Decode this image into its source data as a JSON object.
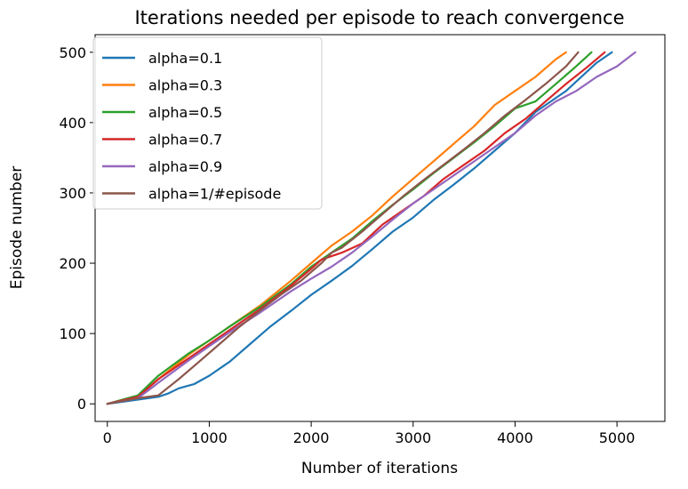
{
  "chart_data": {
    "type": "line",
    "title": "Iterations needed per episode to reach convergence",
    "xlabel": "Number of iterations",
    "ylabel": "Episode number",
    "xlim": [
      -120,
      5470
    ],
    "ylim": [
      -25,
      525
    ],
    "xticks": [
      0,
      1000,
      2000,
      3000,
      4000,
      5000
    ],
    "yticks": [
      0,
      100,
      200,
      300,
      400,
      500
    ],
    "grid": false,
    "legend": {
      "placement": "upper-left"
    },
    "series": [
      {
        "name": "alpha=0.1",
        "color": "#1f77b4",
        "points": [
          [
            0,
            0
          ],
          [
            250,
            5
          ],
          [
            500,
            10
          ],
          [
            600,
            15
          ],
          [
            700,
            22
          ],
          [
            850,
            28
          ],
          [
            1000,
            40
          ],
          [
            1200,
            60
          ],
          [
            1400,
            85
          ],
          [
            1600,
            110
          ],
          [
            1800,
            132
          ],
          [
            2000,
            155
          ],
          [
            2200,
            175
          ],
          [
            2400,
            196
          ],
          [
            2600,
            220
          ],
          [
            2800,
            245
          ],
          [
            3000,
            265
          ],
          [
            3200,
            290
          ],
          [
            3400,
            312
          ],
          [
            3600,
            335
          ],
          [
            3800,
            360
          ],
          [
            4000,
            385
          ],
          [
            4200,
            415
          ],
          [
            4500,
            445
          ],
          [
            4800,
            485
          ],
          [
            4950,
            500
          ]
        ]
      },
      {
        "name": "alpha=0.3",
        "color": "#ff7f0e",
        "points": [
          [
            0,
            0
          ],
          [
            300,
            10
          ],
          [
            500,
            35
          ],
          [
            800,
            70
          ],
          [
            1000,
            90
          ],
          [
            1200,
            110
          ],
          [
            1500,
            140
          ],
          [
            1800,
            175
          ],
          [
            2000,
            200
          ],
          [
            2200,
            225
          ],
          [
            2400,
            245
          ],
          [
            2600,
            268
          ],
          [
            2800,
            295
          ],
          [
            3000,
            320
          ],
          [
            3200,
            345
          ],
          [
            3400,
            370
          ],
          [
            3600,
            395
          ],
          [
            3800,
            425
          ],
          [
            4000,
            445
          ],
          [
            4200,
            465
          ],
          [
            4400,
            490
          ],
          [
            4500,
            500
          ]
        ]
      },
      {
        "name": "alpha=0.5",
        "color": "#2ca02c",
        "points": [
          [
            0,
            0
          ],
          [
            300,
            12
          ],
          [
            500,
            40
          ],
          [
            800,
            72
          ],
          [
            1000,
            90
          ],
          [
            1200,
            110
          ],
          [
            1500,
            138
          ],
          [
            1800,
            170
          ],
          [
            2000,
            195
          ],
          [
            2200,
            215
          ],
          [
            2400,
            235
          ],
          [
            2600,
            260
          ],
          [
            2800,
            283
          ],
          [
            3000,
            305
          ],
          [
            3200,
            328
          ],
          [
            3400,
            350
          ],
          [
            3600,
            372
          ],
          [
            3800,
            395
          ],
          [
            4000,
            420
          ],
          [
            4200,
            430
          ],
          [
            4400,
            455
          ],
          [
            4600,
            480
          ],
          [
            4750,
            500
          ]
        ]
      },
      {
        "name": "alpha=0.7",
        "color": "#d62728",
        "points": [
          [
            0,
            0
          ],
          [
            300,
            10
          ],
          [
            500,
            35
          ],
          [
            800,
            65
          ],
          [
            1000,
            85
          ],
          [
            1200,
            105
          ],
          [
            1500,
            135
          ],
          [
            1800,
            168
          ],
          [
            2000,
            192
          ],
          [
            2100,
            205
          ],
          [
            2200,
            210
          ],
          [
            2300,
            215
          ],
          [
            2500,
            228
          ],
          [
            2700,
            255
          ],
          [
            2900,
            275
          ],
          [
            3100,
            295
          ],
          [
            3300,
            320
          ],
          [
            3500,
            340
          ],
          [
            3700,
            360
          ],
          [
            3900,
            385
          ],
          [
            4100,
            405
          ],
          [
            4300,
            430
          ],
          [
            4500,
            455
          ],
          [
            4700,
            478
          ],
          [
            4880,
            500
          ]
        ]
      },
      {
        "name": "alpha=0.9",
        "color": "#9467bd",
        "points": [
          [
            0,
            0
          ],
          [
            300,
            8
          ],
          [
            500,
            30
          ],
          [
            800,
            62
          ],
          [
            1000,
            82
          ],
          [
            1200,
            102
          ],
          [
            1500,
            130
          ],
          [
            1800,
            160
          ],
          [
            2000,
            178
          ],
          [
            2200,
            195
          ],
          [
            2400,
            215
          ],
          [
            2600,
            238
          ],
          [
            2800,
            262
          ],
          [
            3000,
            285
          ],
          [
            3200,
            305
          ],
          [
            3400,
            325
          ],
          [
            3600,
            345
          ],
          [
            3800,
            365
          ],
          [
            4000,
            385
          ],
          [
            4200,
            410
          ],
          [
            4400,
            430
          ],
          [
            4600,
            445
          ],
          [
            4800,
            465
          ],
          [
            5000,
            480
          ],
          [
            5180,
            500
          ]
        ]
      },
      {
        "name": "alpha=1/#episode",
        "color": "#8c564b",
        "points": [
          [
            0,
            0
          ],
          [
            300,
            8
          ],
          [
            500,
            12
          ],
          [
            700,
            35
          ],
          [
            900,
            60
          ],
          [
            1100,
            85
          ],
          [
            1300,
            110
          ],
          [
            1500,
            133
          ],
          [
            1700,
            155
          ],
          [
            1900,
            175
          ],
          [
            2100,
            200
          ],
          [
            2200,
            215
          ],
          [
            2300,
            222
          ],
          [
            2500,
            245
          ],
          [
            2700,
            270
          ],
          [
            2900,
            295
          ],
          [
            3100,
            318
          ],
          [
            3300,
            340
          ],
          [
            3500,
            362
          ],
          [
            3700,
            385
          ],
          [
            3900,
            410
          ],
          [
            4100,
            432
          ],
          [
            4300,
            455
          ],
          [
            4500,
            480
          ],
          [
            4620,
            500
          ]
        ]
      }
    ]
  }
}
